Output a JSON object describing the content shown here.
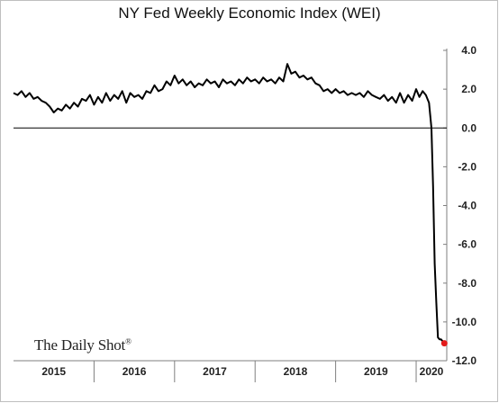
{
  "chart_data": {
    "type": "line",
    "title": "NY Fed Weekly Economic Index (WEI)",
    "xlabel": "",
    "ylabel": "",
    "xlim": [
      2015.0,
      2020.38
    ],
    "ylim": [
      -12,
      4
    ],
    "y_ticks": [
      "4.0",
      "2.0",
      "0.0",
      "-2.0",
      "-4.0",
      "-6.0",
      "-8.0",
      "-10.0",
      "-12.0"
    ],
    "x_tick_labels": [
      "2015",
      "2016",
      "2017",
      "2018",
      "2019",
      "2020"
    ],
    "grid": false,
    "legend": "none",
    "line_color": "#000000",
    "last_point_color": "#e31b1b",
    "series": [
      {
        "x": [
          2015.0,
          2015.05,
          2015.1,
          2015.15,
          2015.2,
          2015.25,
          2015.3,
          2015.35,
          2015.4,
          2015.45,
          2015.5,
          2015.55,
          2015.6,
          2015.65,
          2015.7,
          2015.75,
          2015.8,
          2015.85,
          2015.9,
          2015.95,
          2016.0,
          2016.05,
          2016.1,
          2016.15,
          2016.2,
          2016.25,
          2016.3,
          2016.35,
          2016.4,
          2016.45,
          2016.5,
          2016.55,
          2016.6,
          2016.65,
          2016.7,
          2016.75,
          2016.8,
          2016.85,
          2016.9,
          2016.95,
          2017.0,
          2017.05,
          2017.1,
          2017.15,
          2017.2,
          2017.25,
          2017.3,
          2017.35,
          2017.4,
          2017.45,
          2017.5,
          2017.55,
          2017.6,
          2017.65,
          2017.7,
          2017.75,
          2017.8,
          2017.85,
          2017.9,
          2017.95,
          2018.0,
          2018.05,
          2018.1,
          2018.15,
          2018.2,
          2018.25,
          2018.3,
          2018.35,
          2018.4,
          2018.45,
          2018.5,
          2018.55,
          2018.6,
          2018.65,
          2018.7,
          2018.75,
          2018.8,
          2018.85,
          2018.9,
          2018.95,
          2019.0,
          2019.05,
          2019.1,
          2019.15,
          2019.2,
          2019.25,
          2019.3,
          2019.35,
          2019.4,
          2019.45,
          2019.5,
          2019.55,
          2019.6,
          2019.65,
          2019.7,
          2019.75,
          2019.8,
          2019.85,
          2019.9,
          2019.95,
          2020.0,
          2020.04,
          2020.08,
          2020.12,
          2020.16,
          2020.19,
          2020.21,
          2020.23,
          2020.25,
          2020.27,
          2020.29,
          2020.31,
          2020.33,
          2020.35
        ],
        "values": [
          1.8,
          1.7,
          1.9,
          1.6,
          1.8,
          1.5,
          1.6,
          1.4,
          1.3,
          1.1,
          0.8,
          1.0,
          0.9,
          1.2,
          1.0,
          1.3,
          1.1,
          1.5,
          1.4,
          1.7,
          1.2,
          1.6,
          1.3,
          1.8,
          1.4,
          1.7,
          1.5,
          1.9,
          1.3,
          1.8,
          1.6,
          1.7,
          1.5,
          1.9,
          1.8,
          2.2,
          1.9,
          2.0,
          2.4,
          2.2,
          2.7,
          2.3,
          2.5,
          2.2,
          2.4,
          2.1,
          2.3,
          2.2,
          2.5,
          2.3,
          2.4,
          2.1,
          2.5,
          2.3,
          2.4,
          2.2,
          2.5,
          2.3,
          2.6,
          2.4,
          2.5,
          2.3,
          2.6,
          2.4,
          2.5,
          2.3,
          2.6,
          2.4,
          3.3,
          2.8,
          2.9,
          2.6,
          2.7,
          2.5,
          2.6,
          2.3,
          2.2,
          1.9,
          2.0,
          1.8,
          2.0,
          1.8,
          1.9,
          1.7,
          1.8,
          1.7,
          1.8,
          1.6,
          1.9,
          1.7,
          1.6,
          1.5,
          1.7,
          1.4,
          1.6,
          1.3,
          1.8,
          1.3,
          1.7,
          1.4,
          2.0,
          1.6,
          1.9,
          1.7,
          1.3,
          0.0,
          -3.0,
          -7.0,
          -9.0,
          -10.8,
          -10.9,
          -10.9,
          -11.0,
          -11.1
        ]
      }
    ]
  },
  "watermark": {
    "text": "The Daily Shot",
    "mark": "®"
  }
}
